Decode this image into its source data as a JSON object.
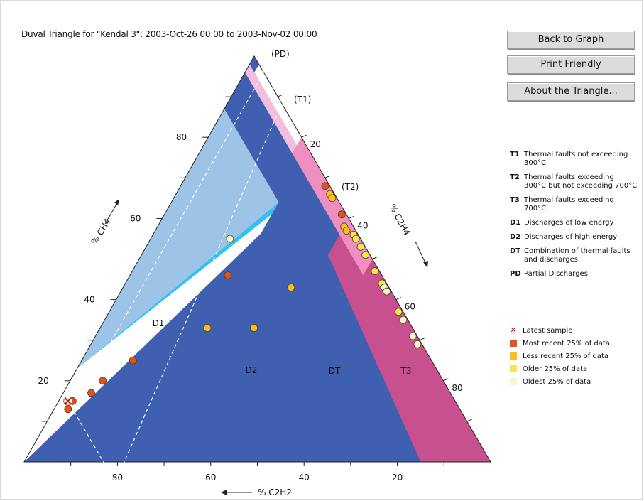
{
  "page": {
    "title": "Duval Triangle for \"Kendal 3\": 2003-Oct-26 00:00 to 2003-Nov-02 00:00"
  },
  "buttons": {
    "back": "Back to Graph",
    "print": "Print Friendly",
    "about": "About the Triangle..."
  },
  "legend": [
    {
      "key": "T1",
      "text": "Thermal faults not exceeding 300°C"
    },
    {
      "key": "T2",
      "text": "Thermal faults exceeding 300°C but not exceeding 700°C"
    },
    {
      "key": "T3",
      "text": "Thermal faults exceeding 700°C"
    },
    {
      "key": "D1",
      "text": "Discharges of low energy"
    },
    {
      "key": "D2",
      "text": "Discharges of high energy"
    },
    {
      "key": "DT",
      "text": "Combination of thermal faults and discharges"
    },
    {
      "key": "PD",
      "text": "Partial Discharges"
    }
  ],
  "samples_legend": {
    "latest": "Latest sample",
    "q1": "Most recent 25% of data",
    "q2": "Less recent 25% of data",
    "q3": "Older 25% of data",
    "q4": "Oldest 25% of data"
  },
  "colors": {
    "D1": "#9dc3e6",
    "D2": "#33c2ee",
    "DT": "#3f5fb0",
    "T3": "#c8508f",
    "T2": "#ef8fc1",
    "T1": "#f3bfdc",
    "PD": "#3f5fb0",
    "q1": "#e2531c",
    "q2": "#f6c21a",
    "q3": "#f3e553",
    "q4": "#f8f6cc",
    "latest": "#d01010",
    "trend": "#ffffff"
  },
  "chart_data": {
    "type": "scatter",
    "ternary": true,
    "title": "Duval Triangle for \"Kendal 3\": 2003-Oct-26 00:00 to 2003-Nov-02 00:00",
    "axes": {
      "ch4": {
        "label": "% CH4",
        "ticks": [
          "20",
          "40",
          "60",
          "80"
        ]
      },
      "c2h4": {
        "label": "% C2H4",
        "ticks": [
          "20",
          "40",
          "60",
          "80"
        ]
      },
      "c2h2": {
        "label": "% C2H2",
        "ticks": [
          "80",
          "60",
          "40",
          "20"
        ]
      }
    },
    "zone_labels": [
      {
        "zone": "PD",
        "text": "(PD)"
      },
      {
        "zone": "T1",
        "text": "(T1)"
      },
      {
        "zone": "T2",
        "text": "(T2)"
      },
      {
        "zone": "D1",
        "text": "D1"
      },
      {
        "zone": "D2",
        "text": "D2"
      },
      {
        "zone": "DT",
        "text": "DT"
      },
      {
        "zone": "T3",
        "text": "T3"
      }
    ],
    "zones": [
      {
        "zone": "D1",
        "c2h4": [
          0,
          0,
          23,
          0
        ],
        "c2h2": [
          100,
          13,
          13,
          77
        ]
      },
      {
        "zone": "D2",
        "c2h4": [
          0,
          23,
          23,
          40,
          40,
          29,
          29
        ],
        "c2h2": [
          77,
          13,
          29,
          29,
          13,
          13,
          0
        ]
      },
      {
        "zone": "DT",
        "c2h4": [
          0,
          29,
          29,
          40,
          40,
          23,
          23,
          0,
          0,
          2,
          2,
          50,
          50,
          40,
          40,
          87
        ],
        "c2h2": [
          100,
          0,
          13,
          13,
          29,
          29,
          13,
          13,
          0,
          0,
          2,
          2,
          2,
          9,
          9,
          13
        ]
      },
      {
        "zone": "T3",
        "c2h4": [
          50,
          50,
          40,
          40,
          85,
          100
        ],
        "c2h2": [
          0,
          2,
          2,
          9,
          15,
          0
        ]
      },
      {
        "zone": "T2",
        "c2h4": [
          20,
          20,
          50,
          50
        ],
        "c2h2": [
          0,
          4,
          4,
          0
        ]
      },
      {
        "zone": "T1",
        "c2h4": [
          0,
          0,
          20,
          20
        ],
        "c2h2": [
          2,
          4,
          4,
          2
        ]
      },
      {
        "zone": "PD",
        "c2h4": [
          0,
          0,
          2
        ],
        "c2h2": [
          0,
          2,
          0
        ]
      }
    ],
    "trend_line": {
      "c2h4": [
        4,
        4,
        22
      ],
      "c2h2": [
        0,
        83,
        83
      ]
    },
    "series": [
      {
        "group": "q1",
        "points": [
          {
            "c2h4": 31,
            "c2h2": 1
          },
          {
            "c2h4": 38,
            "c2h2": 1
          },
          {
            "c2h4": 21,
            "c2h2": 33
          },
          {
            "c2h4": 11,
            "c2h2": 64
          },
          {
            "c2h4": 7,
            "c2h2": 73
          },
          {
            "c2h4": 6,
            "c2h2": 77
          },
          {
            "c2h4": 3,
            "c2h2": 82
          },
          {
            "c2h4": 3,
            "c2h2": 84
          },
          {
            "c2h4": 2,
            "c2h2": 83
          }
        ]
      },
      {
        "group": "q2",
        "points": [
          {
            "c2h4": 33,
            "c2h2": 1
          },
          {
            "c2h4": 34,
            "c2h2": 1
          },
          {
            "c2h4": 40,
            "c2h2": 2
          },
          {
            "c2h4": 41,
            "c2h2": 2
          },
          {
            "c2h4": 36,
            "c2h2": 21
          },
          {
            "c2h4": 33,
            "c2h2": 34
          },
          {
            "c2h4": 23,
            "c2h2": 44
          }
        ]
      },
      {
        "group": "q3",
        "points": [
          {
            "c2h4": 43,
            "c2h2": 1
          },
          {
            "c2h4": 44,
            "c2h2": 1
          },
          {
            "c2h4": 46,
            "c2h2": 1
          },
          {
            "c2h4": 48,
            "c2h2": 1
          },
          {
            "c2h4": 52,
            "c2h2": 1
          },
          {
            "c2h4": 55,
            "c2h2": 1
          },
          {
            "c2h4": 62,
            "c2h2": 1
          }
        ]
      },
      {
        "group": "q4",
        "points": [
          {
            "c2h4": 56,
            "c2h2": 1
          },
          {
            "c2h4": 57,
            "c2h2": 1
          },
          {
            "c2h4": 64,
            "c2h2": 1
          },
          {
            "c2h4": 68,
            "c2h2": 1
          },
          {
            "c2h4": 70,
            "c2h2": 1
          },
          {
            "c2h4": 17,
            "c2h2": 28
          }
        ]
      }
    ],
    "latest": {
      "c2h4": 2,
      "c2h2": 83
    }
  }
}
